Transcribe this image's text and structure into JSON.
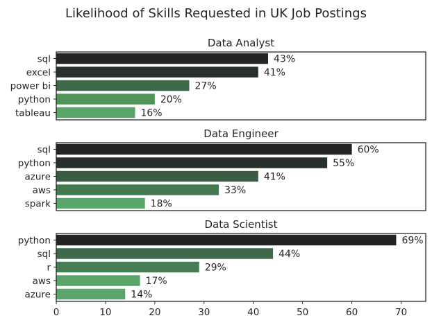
{
  "title": "Likelihood of Skills Requested in UK Job Postings",
  "chart_data": [
    {
      "type": "bar",
      "orientation": "horizontal",
      "title": "Data Analyst",
      "categories": [
        "sql",
        "excel",
        "power bi",
        "python",
        "tableau"
      ],
      "values": [
        43,
        41,
        27,
        20,
        16
      ],
      "value_labels": [
        "43%",
        "41%",
        "27%",
        "20%",
        "16%"
      ],
      "colors": [
        "#232624",
        "#27302a",
        "#3e6a4b",
        "#509659",
        "#5aa56a"
      ],
      "xlim": [
        0,
        75
      ],
      "xticks": [
        "0",
        "10",
        "20",
        "30",
        "40",
        "50",
        "60",
        "70"
      ],
      "show_xticks": false
    },
    {
      "type": "bar",
      "orientation": "horizontal",
      "title": "Data Engineer",
      "categories": [
        "sql",
        "python",
        "azure",
        "aws",
        "spark"
      ],
      "values": [
        60,
        55,
        41,
        33,
        18
      ],
      "value_labels": [
        "60%",
        "55%",
        "41%",
        "33%",
        "18%"
      ],
      "colors": [
        "#212422",
        "#27302a",
        "#3a5c43",
        "#447a52",
        "#5aa56a"
      ],
      "xlim": [
        0,
        75
      ],
      "xticks": [
        "0",
        "10",
        "20",
        "30",
        "40",
        "50",
        "60",
        "70"
      ],
      "show_xticks": false
    },
    {
      "type": "bar",
      "orientation": "horizontal",
      "title": "Data Scientist",
      "categories": [
        "python",
        "sql",
        "r",
        "aws",
        "azure"
      ],
      "values": [
        69,
        44,
        29,
        17,
        14
      ],
      "value_labels": [
        "69%",
        "44%",
        "29%",
        "17%",
        "14%"
      ],
      "colors": [
        "#212422",
        "#3e6a4b",
        "#467d55",
        "#5aa56a",
        "#5aa56a"
      ],
      "xlim": [
        0,
        75
      ],
      "xticks": [
        "0",
        "10",
        "20",
        "30",
        "40",
        "50",
        "60",
        "70"
      ],
      "show_xticks": true
    }
  ]
}
